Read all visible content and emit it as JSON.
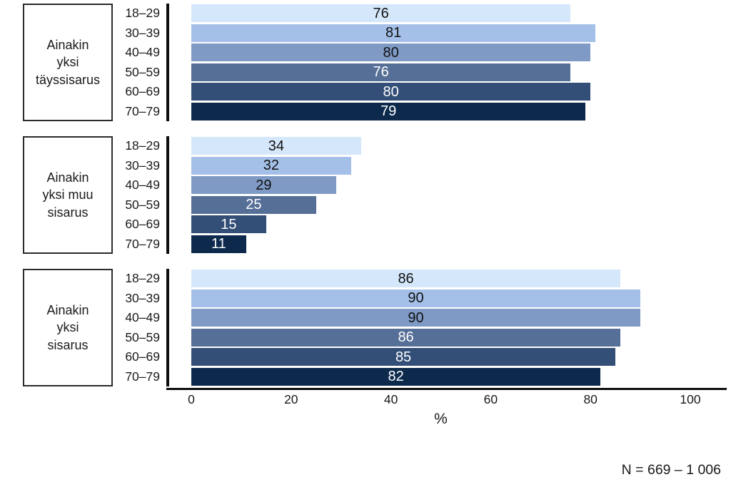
{
  "chart_data": {
    "type": "bar",
    "orientation": "horizontal",
    "title": "",
    "xlabel": "%",
    "xlim": [
      0,
      100
    ],
    "x_ticks": [
      0,
      20,
      40,
      60,
      80,
      100
    ],
    "categories": [
      "18–29",
      "30–39",
      "40–49",
      "50–59",
      "60–69",
      "70–79"
    ],
    "groups": [
      {
        "label": "Ainakin yksi täyssisarus",
        "label_lines": [
          "Ainakin",
          "yksi",
          "täyssisarus"
        ],
        "values": [
          76,
          81,
          80,
          76,
          80,
          79
        ]
      },
      {
        "label": "Ainakin yksi muu sisarus",
        "label_lines": [
          "Ainakin",
          "yksi muu",
          "sisarus"
        ],
        "values": [
          34,
          32,
          29,
          25,
          15,
          11
        ]
      },
      {
        "label": "Ainakin yksi sisarus",
        "label_lines": [
          "Ainakin",
          "yksi",
          "sisarus"
        ],
        "values": [
          86,
          90,
          90,
          86,
          85,
          82
        ]
      }
    ],
    "bar_colors": [
      "#d5e8fb",
      "#a4c0e9",
      "#7e9ac5",
      "#566f97",
      "#334e77",
      "#0d2a4d"
    ],
    "value_text_colors": [
      "#111111",
      "#111111",
      "#111111",
      "#ffffff",
      "#ffffff",
      "#ffffff"
    ],
    "axis_color": "#0d0d0d",
    "legend_position": "left",
    "grid": false,
    "note": "N = 669 – 1 006"
  }
}
